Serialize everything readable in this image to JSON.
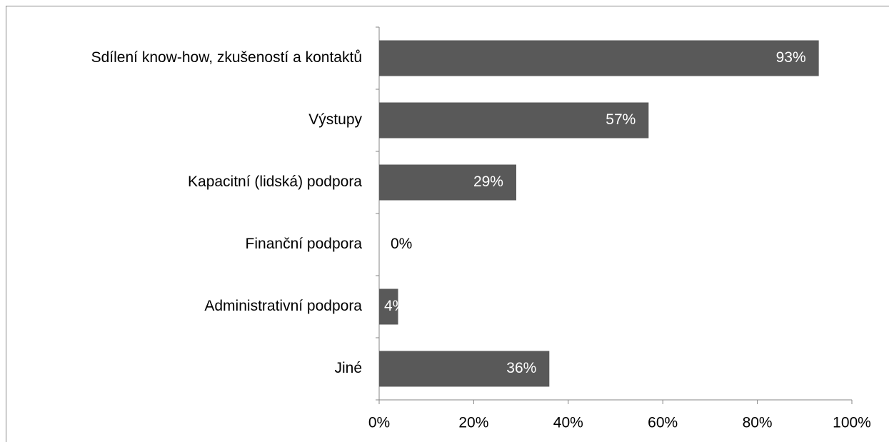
{
  "chart_data": {
    "type": "hbar",
    "categories": [
      "Sdílení know-how, zkušeností a kontaktů",
      "Výstupy",
      "Kapacitní (lidská) podpora",
      "Finanční podpora",
      "Administrativní podpora",
      "Jiné"
    ],
    "values": [
      93,
      57,
      29,
      0,
      4,
      36
    ],
    "value_labels": [
      "93%",
      "57%",
      "29%",
      "0%",
      "4%",
      "36%"
    ],
    "color": "#595959",
    "xlim": [
      0,
      100
    ],
    "xticks": [
      {
        "value": 0,
        "label": "0%"
      },
      {
        "value": 20,
        "label": "20%"
      },
      {
        "value": 40,
        "label": "40%"
      },
      {
        "value": 60,
        "label": "60%"
      },
      {
        "value": 80,
        "label": "80%"
      },
      {
        "value": 100,
        "label": "100%"
      }
    ],
    "grid": false
  }
}
